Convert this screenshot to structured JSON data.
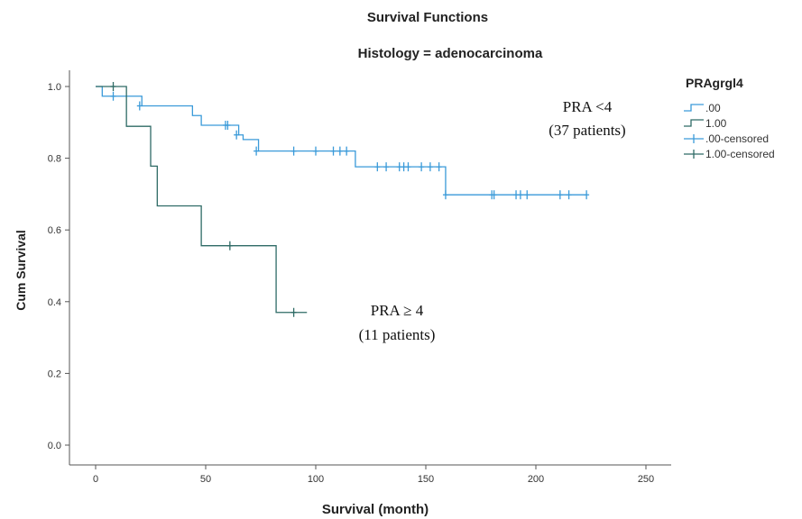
{
  "chart_data": {
    "type": "line",
    "subtype": "kaplan-meier",
    "title": "Survival Functions",
    "subtitle": "Histology = adenocarcinoma",
    "xlabel": "Survival (month)",
    "ylabel": "Cum Survival",
    "xlim": [
      0,
      250
    ],
    "ylim": [
      0,
      1.0
    ],
    "x_ticks": [
      "0",
      "50",
      "100",
      "150",
      "200",
      "250"
    ],
    "y_ticks": [
      "0.0",
      "0.2",
      "0.4",
      "0.6",
      "0.8",
      "1.0"
    ],
    "grid": false,
    "legend": {
      "title": "PRAgrgl4",
      "placement": "right",
      "entries": [
        ".00",
        "1.00",
        ".00-censored",
        "1.00-censored"
      ]
    },
    "series": [
      {
        "name": ".00",
        "color": "#3a9ad9",
        "steps": [
          [
            0,
            1.0
          ],
          [
            3,
            0.973
          ],
          [
            21,
            0.946
          ],
          [
            44,
            0.919
          ],
          [
            48,
            0.892
          ],
          [
            65,
            0.865
          ],
          [
            67,
            0.852
          ],
          [
            74,
            0.82
          ],
          [
            118,
            0.776
          ],
          [
            159,
            0.698
          ],
          [
            223,
            0.698
          ]
        ],
        "censored": [
          [
            8,
            0.973
          ],
          [
            20,
            0.946
          ],
          [
            59,
            0.892
          ],
          [
            60,
            0.892
          ],
          [
            64,
            0.865
          ],
          [
            73,
            0.82
          ],
          [
            90,
            0.82
          ],
          [
            100,
            0.82
          ],
          [
            108,
            0.82
          ],
          [
            111,
            0.82
          ],
          [
            114,
            0.82
          ],
          [
            128,
            0.776
          ],
          [
            132,
            0.776
          ],
          [
            138,
            0.776
          ],
          [
            140,
            0.776
          ],
          [
            142,
            0.776
          ],
          [
            148,
            0.776
          ],
          [
            152,
            0.776
          ],
          [
            156,
            0.776
          ],
          [
            159,
            0.698
          ],
          [
            180,
            0.698
          ],
          [
            181,
            0.698
          ],
          [
            191,
            0.698
          ],
          [
            193,
            0.698
          ],
          [
            196,
            0.698
          ],
          [
            211,
            0.698
          ],
          [
            215,
            0.698
          ],
          [
            223,
            0.698
          ]
        ]
      },
      {
        "name": "1.00",
        "color": "#2f6b66",
        "steps": [
          [
            0,
            1.0
          ],
          [
            14,
            0.889
          ],
          [
            25,
            0.778
          ],
          [
            28,
            0.667
          ],
          [
            48,
            0.556
          ],
          [
            82,
            0.37
          ],
          [
            96,
            0.37
          ]
        ],
        "censored": [
          [
            8,
            1.0
          ],
          [
            61,
            0.556
          ],
          [
            90,
            0.37
          ]
        ]
      }
    ],
    "annotations": [
      {
        "line1": "PRA <4",
        "line2": "(37 patients)"
      },
      {
        "line1": "PRA ≥ 4",
        "line2": "(11 patients)"
      }
    ]
  }
}
